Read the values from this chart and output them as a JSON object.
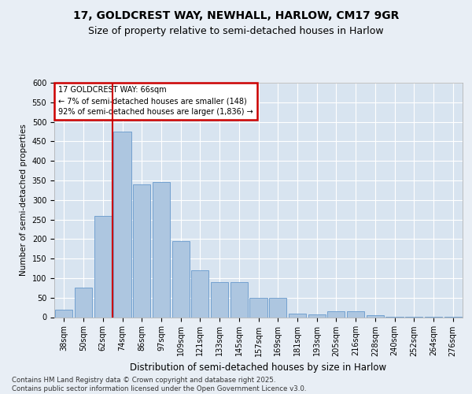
{
  "title1": "17, GOLDCREST WAY, NEWHALL, HARLOW, CM17 9GR",
  "title2": "Size of property relative to semi-detached houses in Harlow",
  "xlabel": "Distribution of semi-detached houses by size in Harlow",
  "ylabel": "Number of semi-detached properties",
  "footer": "Contains HM Land Registry data © Crown copyright and database right 2025.\nContains public sector information licensed under the Open Government Licence v3.0.",
  "annotation_title": "17 GOLDCREST WAY: 66sqm",
  "annotation_line1": "← 7% of semi-detached houses are smaller (148)",
  "annotation_line2": "92% of semi-detached houses are larger (1,836) →",
  "bar_categories": [
    "38sqm",
    "50sqm",
    "62sqm",
    "74sqm",
    "86sqm",
    "97sqm",
    "109sqm",
    "121sqm",
    "133sqm",
    "145sqm",
    "157sqm",
    "169sqm",
    "181sqm",
    "193sqm",
    "205sqm",
    "216sqm",
    "228sqm",
    "240sqm",
    "252sqm",
    "264sqm",
    "276sqm"
  ],
  "bar_values": [
    20,
    75,
    260,
    475,
    340,
    345,
    195,
    120,
    90,
    90,
    50,
    50,
    10,
    8,
    15,
    15,
    5,
    2,
    1,
    1,
    1
  ],
  "bar_color": "#adc6e0",
  "bar_edge_color": "#6699cc",
  "vline_color": "#cc0000",
  "vline_position": 2.5,
  "annotation_box_color": "#cc0000",
  "ylim": [
    0,
    600
  ],
  "yticks": [
    0,
    50,
    100,
    150,
    200,
    250,
    300,
    350,
    400,
    450,
    500,
    550,
    600
  ],
  "bg_color": "#e8eef5",
  "plot_bg_color": "#d8e4f0",
  "grid_color": "#ffffff",
  "title1_fontsize": 10,
  "title2_fontsize": 9,
  "ylabel_fontsize": 7.5,
  "xlabel_fontsize": 8.5,
  "tick_fontsize": 7,
  "footer_fontsize": 6.2
}
